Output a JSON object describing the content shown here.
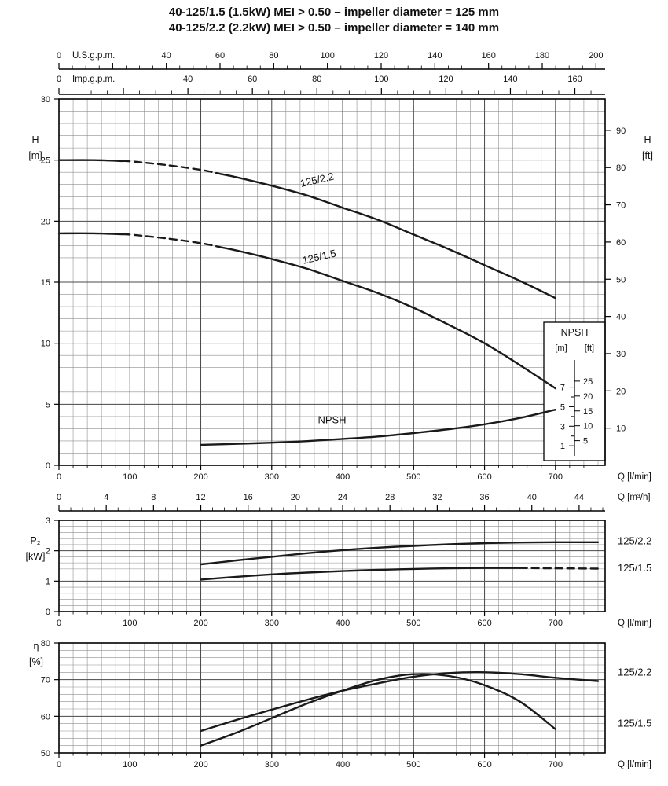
{
  "title": {
    "line1": "40-125/1.5 (1.5kW) MEI > 0.50 – impeller diameter = 125 mm",
    "line2": "40-125/2.2 (2.2kW) MEI > 0.50 – impeller diameter = 140 mm"
  },
  "colors": {
    "background": "#ffffff",
    "curve": "#1a1a1a",
    "grid_minor": "#8f8f8f",
    "grid_major": "#4a4a4a",
    "axis": "#000000",
    "text": "#111111"
  },
  "chart_data": [
    {
      "type": "line",
      "id": "main",
      "name": "head-flow-curves",
      "x_axis": {
        "label": "Q [l/min]",
        "range": [
          0,
          770
        ],
        "tick_labels": [
          0,
          100,
          200,
          300,
          400,
          500,
          600,
          700
        ],
        "major_step": 100,
        "minor_step": 20
      },
      "y_axis_left": {
        "label": "H",
        "unit": "[m]",
        "range": [
          0,
          30
        ],
        "tick_labels": [
          0,
          5,
          10,
          15,
          20,
          25,
          30
        ],
        "major_step": 5,
        "minor_step": 1
      },
      "y_axis_right": {
        "label": "H",
        "unit": "[ft]",
        "tick_labels": [
          10,
          20,
          30,
          40,
          50,
          60,
          70,
          80,
          90
        ],
        "ft_per_m": 3.2808
      },
      "top_rulers": [
        {
          "id": "usgpm",
          "label": "U.S.g.p.m.",
          "label_side": "left",
          "unit_per_lmin": 0.264172,
          "tick_labels": [
            0,
            40,
            60,
            80,
            100,
            120,
            140,
            160,
            180,
            200
          ],
          "major_step": 20,
          "minor_step": 5
        },
        {
          "id": "impgpm",
          "label": "Imp.g.p.m.",
          "label_side": "left",
          "unit_per_lmin": 0.219969,
          "tick_labels": [
            0,
            40,
            60,
            80,
            100,
            120,
            140,
            160
          ],
          "major_step": 20,
          "minor_step": 5
        }
      ],
      "npsh_scale": {
        "title": "NPSH",
        "m_label": "[m]",
        "ft_label": "[ft]",
        "m_ticks": [
          1,
          3,
          5,
          7
        ],
        "ft_ticks": [
          5,
          10,
          15,
          20,
          25
        ],
        "h_axis_offset": 0.8,
        "h_axis_scale": 0.8
      },
      "series": [
        {
          "name": "125/2.2",
          "label": "125/2.2",
          "label_q": 365,
          "label_pos": 23.1,
          "label_rotation": -13,
          "x": [
            0,
            50,
            100,
            150,
            200,
            250,
            300,
            350,
            400,
            450,
            500,
            550,
            600,
            650,
            700
          ],
          "y": [
            25,
            25,
            24.9,
            24.6,
            24.2,
            23.6,
            22.9,
            22.1,
            21.1,
            20.1,
            18.9,
            17.7,
            16.4,
            15.1,
            13.7
          ],
          "dash_ranges": [
            [
              90,
              230
            ]
          ]
        },
        {
          "name": "125/1.5",
          "label": "125/1.5",
          "label_q": 368,
          "label_pos": 16.8,
          "label_rotation": -13,
          "x": [
            0,
            50,
            100,
            150,
            200,
            250,
            300,
            350,
            400,
            450,
            500,
            550,
            600,
            650,
            700
          ],
          "y": [
            19,
            19,
            18.9,
            18.6,
            18.2,
            17.6,
            16.9,
            16.1,
            15.1,
            14.1,
            12.9,
            11.5,
            10,
            8.2,
            6.3
          ],
          "dash_ranges": [
            [
              90,
              230
            ]
          ]
        },
        {
          "name": "NPSH",
          "label": "NPSH",
          "axis": "npsh",
          "label_q": 385,
          "label_pos": 3.3,
          "label_rotation": 0,
          "x": [
            200,
            250,
            300,
            350,
            400,
            450,
            500,
            550,
            600,
            650,
            700
          ],
          "y": [
            1.1,
            1.2,
            1.32,
            1.48,
            1.7,
            1.95,
            2.3,
            2.7,
            3.2,
            3.85,
            4.7
          ]
        }
      ]
    },
    {
      "type": "line",
      "id": "p2",
      "name": "power-flow-curves",
      "x_axis": {
        "label": "Q [l/min]",
        "range": [
          0,
          770
        ],
        "tick_labels": [
          0,
          100,
          200,
          300,
          400,
          500,
          600,
          700
        ],
        "major_step": 100,
        "minor_step": 20
      },
      "y_axis_left": {
        "label": "P₂",
        "unit": "[kW]",
        "range": [
          0,
          3
        ],
        "tick_labels": [
          0,
          1,
          2,
          3
        ],
        "major_step": 1,
        "minor_step": 0.2
      },
      "top_rulers": [
        {
          "id": "m3h",
          "label": "Q [m³/h]",
          "label_side": "right",
          "unit_per_lmin": 0.06,
          "tick_labels": [
            0,
            4,
            8,
            12,
            16,
            20,
            24,
            28,
            32,
            36,
            40,
            44
          ],
          "major_step": 4,
          "minor_step": 1
        }
      ],
      "series": [
        {
          "name": "125/2.2",
          "label": "125/2.2",
          "label_v": 2.32,
          "x": [
            200,
            250,
            300,
            350,
            400,
            450,
            500,
            550,
            600,
            650,
            700,
            760
          ],
          "y": [
            1.55,
            1.68,
            1.8,
            1.92,
            2.02,
            2.1,
            2.16,
            2.21,
            2.25,
            2.27,
            2.28,
            2.28
          ]
        },
        {
          "name": "125/1.5",
          "label": "125/1.5",
          "label_v": 1.42,
          "x": [
            200,
            250,
            300,
            350,
            400,
            450,
            500,
            550,
            600,
            650,
            700,
            760
          ],
          "y": [
            1.05,
            1.14,
            1.22,
            1.28,
            1.33,
            1.37,
            1.4,
            1.42,
            1.43,
            1.43,
            1.42,
            1.41
          ],
          "dash_ranges": [
            [
              650,
              760
            ]
          ]
        }
      ]
    },
    {
      "type": "line",
      "id": "eta",
      "name": "efficiency-flow-curves",
      "x_axis": {
        "label": "Q [l/min]",
        "range": [
          0,
          770
        ],
        "tick_labels": [
          0,
          100,
          200,
          300,
          400,
          500,
          600,
          700
        ],
        "major_step": 100,
        "minor_step": 20
      },
      "y_axis_left": {
        "label": "η",
        "unit": "[%]",
        "range": [
          50,
          80
        ],
        "tick_labels": [
          50,
          60,
          70,
          80
        ],
        "major_step": 10,
        "minor_step": 2
      },
      "series": [
        {
          "name": "125/2.2",
          "label": "125/2.2",
          "label_v": 72,
          "x": [
            200,
            250,
            300,
            350,
            400,
            450,
            500,
            550,
            600,
            650,
            700,
            760
          ],
          "y": [
            56,
            59,
            61.8,
            64.5,
            67,
            69,
            70.8,
            71.8,
            72,
            71.5,
            70.5,
            69.6
          ]
        },
        {
          "name": "125/1.5",
          "label": "125/1.5",
          "label_v": 58,
          "x": [
            200,
            250,
            300,
            350,
            400,
            450,
            500,
            550,
            600,
            650,
            700
          ],
          "y": [
            52,
            55.5,
            59.5,
            63.5,
            67,
            70,
            71.5,
            71,
            68.5,
            64,
            56.5
          ]
        }
      ]
    }
  ]
}
